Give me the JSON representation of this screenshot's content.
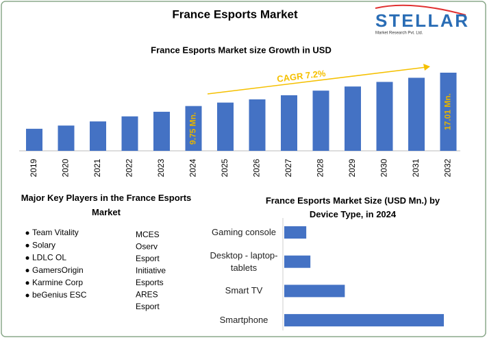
{
  "title": "France Esports Market",
  "logo": {
    "name": "STELLAR",
    "tagline": "Market Research Pvt. Ltd."
  },
  "chart_data": [
    {
      "type": "bar",
      "title": "France Esports Market size Growth in USD",
      "annotation": "CAGR 7.2%",
      "categories": [
        "2019",
        "2020",
        "2021",
        "2022",
        "2023",
        "2024",
        "2025",
        "2026",
        "2027",
        "2028",
        "2029",
        "2030",
        "2031",
        "2032"
      ],
      "values": [
        4.8,
        5.5,
        6.4,
        7.5,
        8.5,
        9.75,
        10.5,
        11.2,
        12.1,
        13.1,
        14.0,
        15.0,
        15.9,
        17.01
      ],
      "value_labels": [
        null,
        null,
        null,
        null,
        null,
        "9.75 Mn.",
        null,
        null,
        null,
        null,
        null,
        null,
        null,
        "17.01 Mn."
      ],
      "color": "#4472c4",
      "label_color": "#e6b400"
    },
    {
      "type": "hbar",
      "title": "France Esports Market Size (USD Mn.) by Device Type, in 2024",
      "categories": [
        "Gaming console",
        "Desktop - laptop-tablets",
        "Smart TV",
        "Smartphone"
      ],
      "values": [
        0.8,
        0.95,
        2.2,
        5.8
      ],
      "color": "#4472c4"
    }
  ],
  "key_players": {
    "title": "Major Key Players in the France Esports Market",
    "list": [
      "Team Vitality",
      "Solary",
      "LDLC OL",
      "GamersOrigin",
      "Karmine Corp",
      "beGenius ESC"
    ],
    "more": [
      "MCES",
      "Oserv",
      "Esport",
      "Initiative",
      "Esports",
      "ARES",
      "Esport"
    ]
  }
}
